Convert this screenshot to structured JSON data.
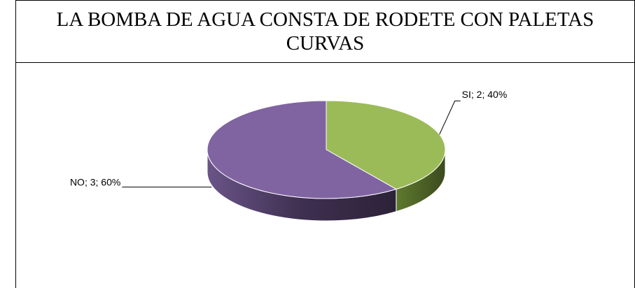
{
  "chart_data": {
    "type": "pie",
    "title": "LA BOMBA DE AGUA CONSTA DE RODETE CON PALETAS CURVAS",
    "categories": [
      "SI",
      "NO"
    ],
    "values": [
      2,
      3
    ],
    "value_labels": [
      "SI; 2; 40%",
      "NO; 3; 60%"
    ],
    "colors": [
      "#9bbb59",
      "#8064a2"
    ]
  }
}
